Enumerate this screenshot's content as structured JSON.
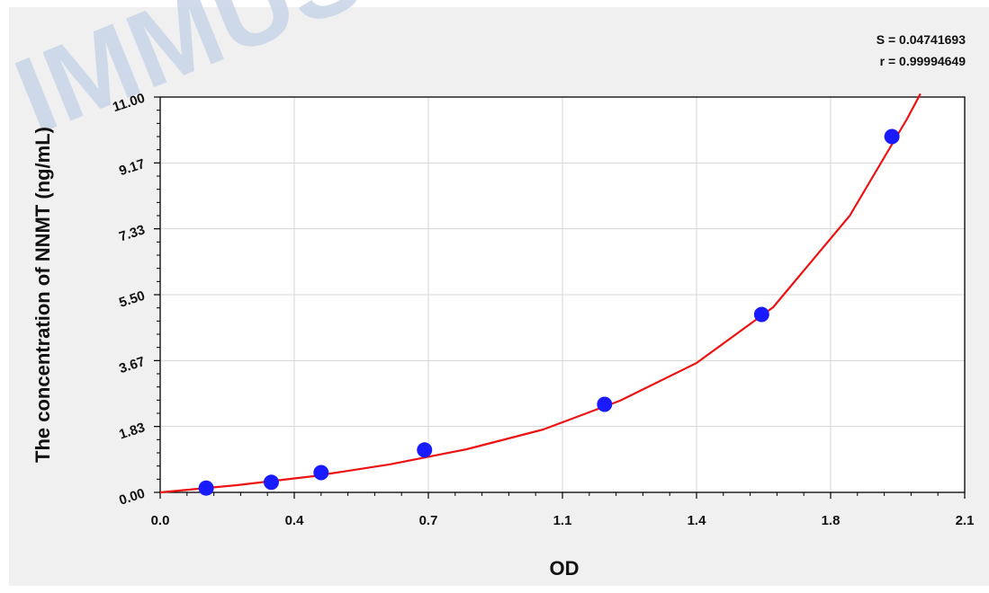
{
  "chart_data": {
    "type": "scatter",
    "xlabel": "OD",
    "ylabel": "The concentration of NNMT (ng/mL)",
    "xlim": [
      0.0,
      2.1
    ],
    "ylim": [
      0.0,
      11.0
    ],
    "x_ticks": [
      "0.0",
      "0.4",
      "0.7",
      "1.1",
      "1.4",
      "1.8",
      "2.1"
    ],
    "y_ticks": [
      "0.00",
      "1.83",
      "3.67",
      "5.50",
      "7.33",
      "9.17",
      "11.00"
    ],
    "grid": true,
    "series": [
      {
        "marker": "circle",
        "points": [
          {
            "x": 0.12,
            "y": 0.12
          },
          {
            "x": 0.29,
            "y": 0.28
          },
          {
            "x": 0.42,
            "y": 0.55
          },
          {
            "x": 0.69,
            "y": 1.18
          },
          {
            "x": 1.16,
            "y": 2.45
          },
          {
            "x": 1.57,
            "y": 4.95
          },
          {
            "x": 1.91,
            "y": 9.9
          }
        ]
      }
    ],
    "fit_curve": {
      "points": [
        {
          "x": 0.0,
          "y": 0.0
        },
        {
          "x": 0.2,
          "y": 0.2
        },
        {
          "x": 0.4,
          "y": 0.45
        },
        {
          "x": 0.6,
          "y": 0.78
        },
        {
          "x": 0.8,
          "y": 1.2
        },
        {
          "x": 1.0,
          "y": 1.75
        },
        {
          "x": 1.2,
          "y": 2.55
        },
        {
          "x": 1.4,
          "y": 3.6
        },
        {
          "x": 1.6,
          "y": 5.15
        },
        {
          "x": 1.8,
          "y": 7.7
        },
        {
          "x": 1.95,
          "y": 10.4
        },
        {
          "x": 1.98,
          "y": 11.0
        }
      ]
    },
    "annotations": [
      "S = 0.04741693",
      "r = 0.99994649"
    ],
    "colors": {
      "points": "#1a1aff",
      "curve": "#ee1111",
      "grid": "#d6d6d6",
      "background": "#f0f0f0"
    }
  },
  "stats": {
    "s": "S = 0.04741693",
    "r": "r = 0.99994649"
  },
  "watermark": {
    "text": "IMMUSCIENCE"
  }
}
